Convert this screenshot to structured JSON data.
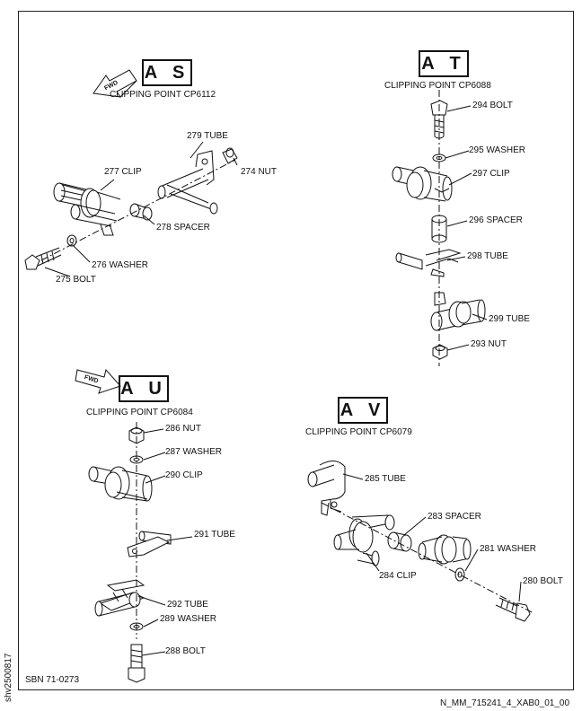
{
  "sections": {
    "as": {
      "title": "A S",
      "clipping_point": "CLIPPING POINT CP6112"
    },
    "at": {
      "title": "A T",
      "clipping_point": "CLIPPING POINT CP6088"
    },
    "au": {
      "title": "A U",
      "clipping_point": "CLIPPING POINT CP6084"
    },
    "av": {
      "title": "A V",
      "clipping_point": "CLIPPING POINT CP6079"
    }
  },
  "fwd_label": "FWD",
  "labels": {
    "as": [
      "279 TUBE",
      "277 CLIP",
      "274 NUT",
      "278 SPACER",
      "276 WASHER",
      "275 BOLT"
    ],
    "at": [
      "294 BOLT",
      "295 WASHER",
      "297 CLIP",
      "296 SPACER",
      "298 TUBE",
      "299 TUBE",
      "293 NUT"
    ],
    "au": [
      "286 NUT",
      "287 WASHER",
      "290 CLIP",
      "291 TUBE",
      "292 TUBE",
      "289 WASHER",
      "288 BOLT"
    ],
    "av": [
      "285 TUBE",
      "283 SPACER",
      "281 WASHER",
      "284 CLIP",
      "280 BOLT"
    ]
  },
  "footer": {
    "sbn": "SBN 71-0273",
    "side_code": "shv2500817",
    "file_id": "N_MM_715241_4_XAB0_01_00"
  }
}
